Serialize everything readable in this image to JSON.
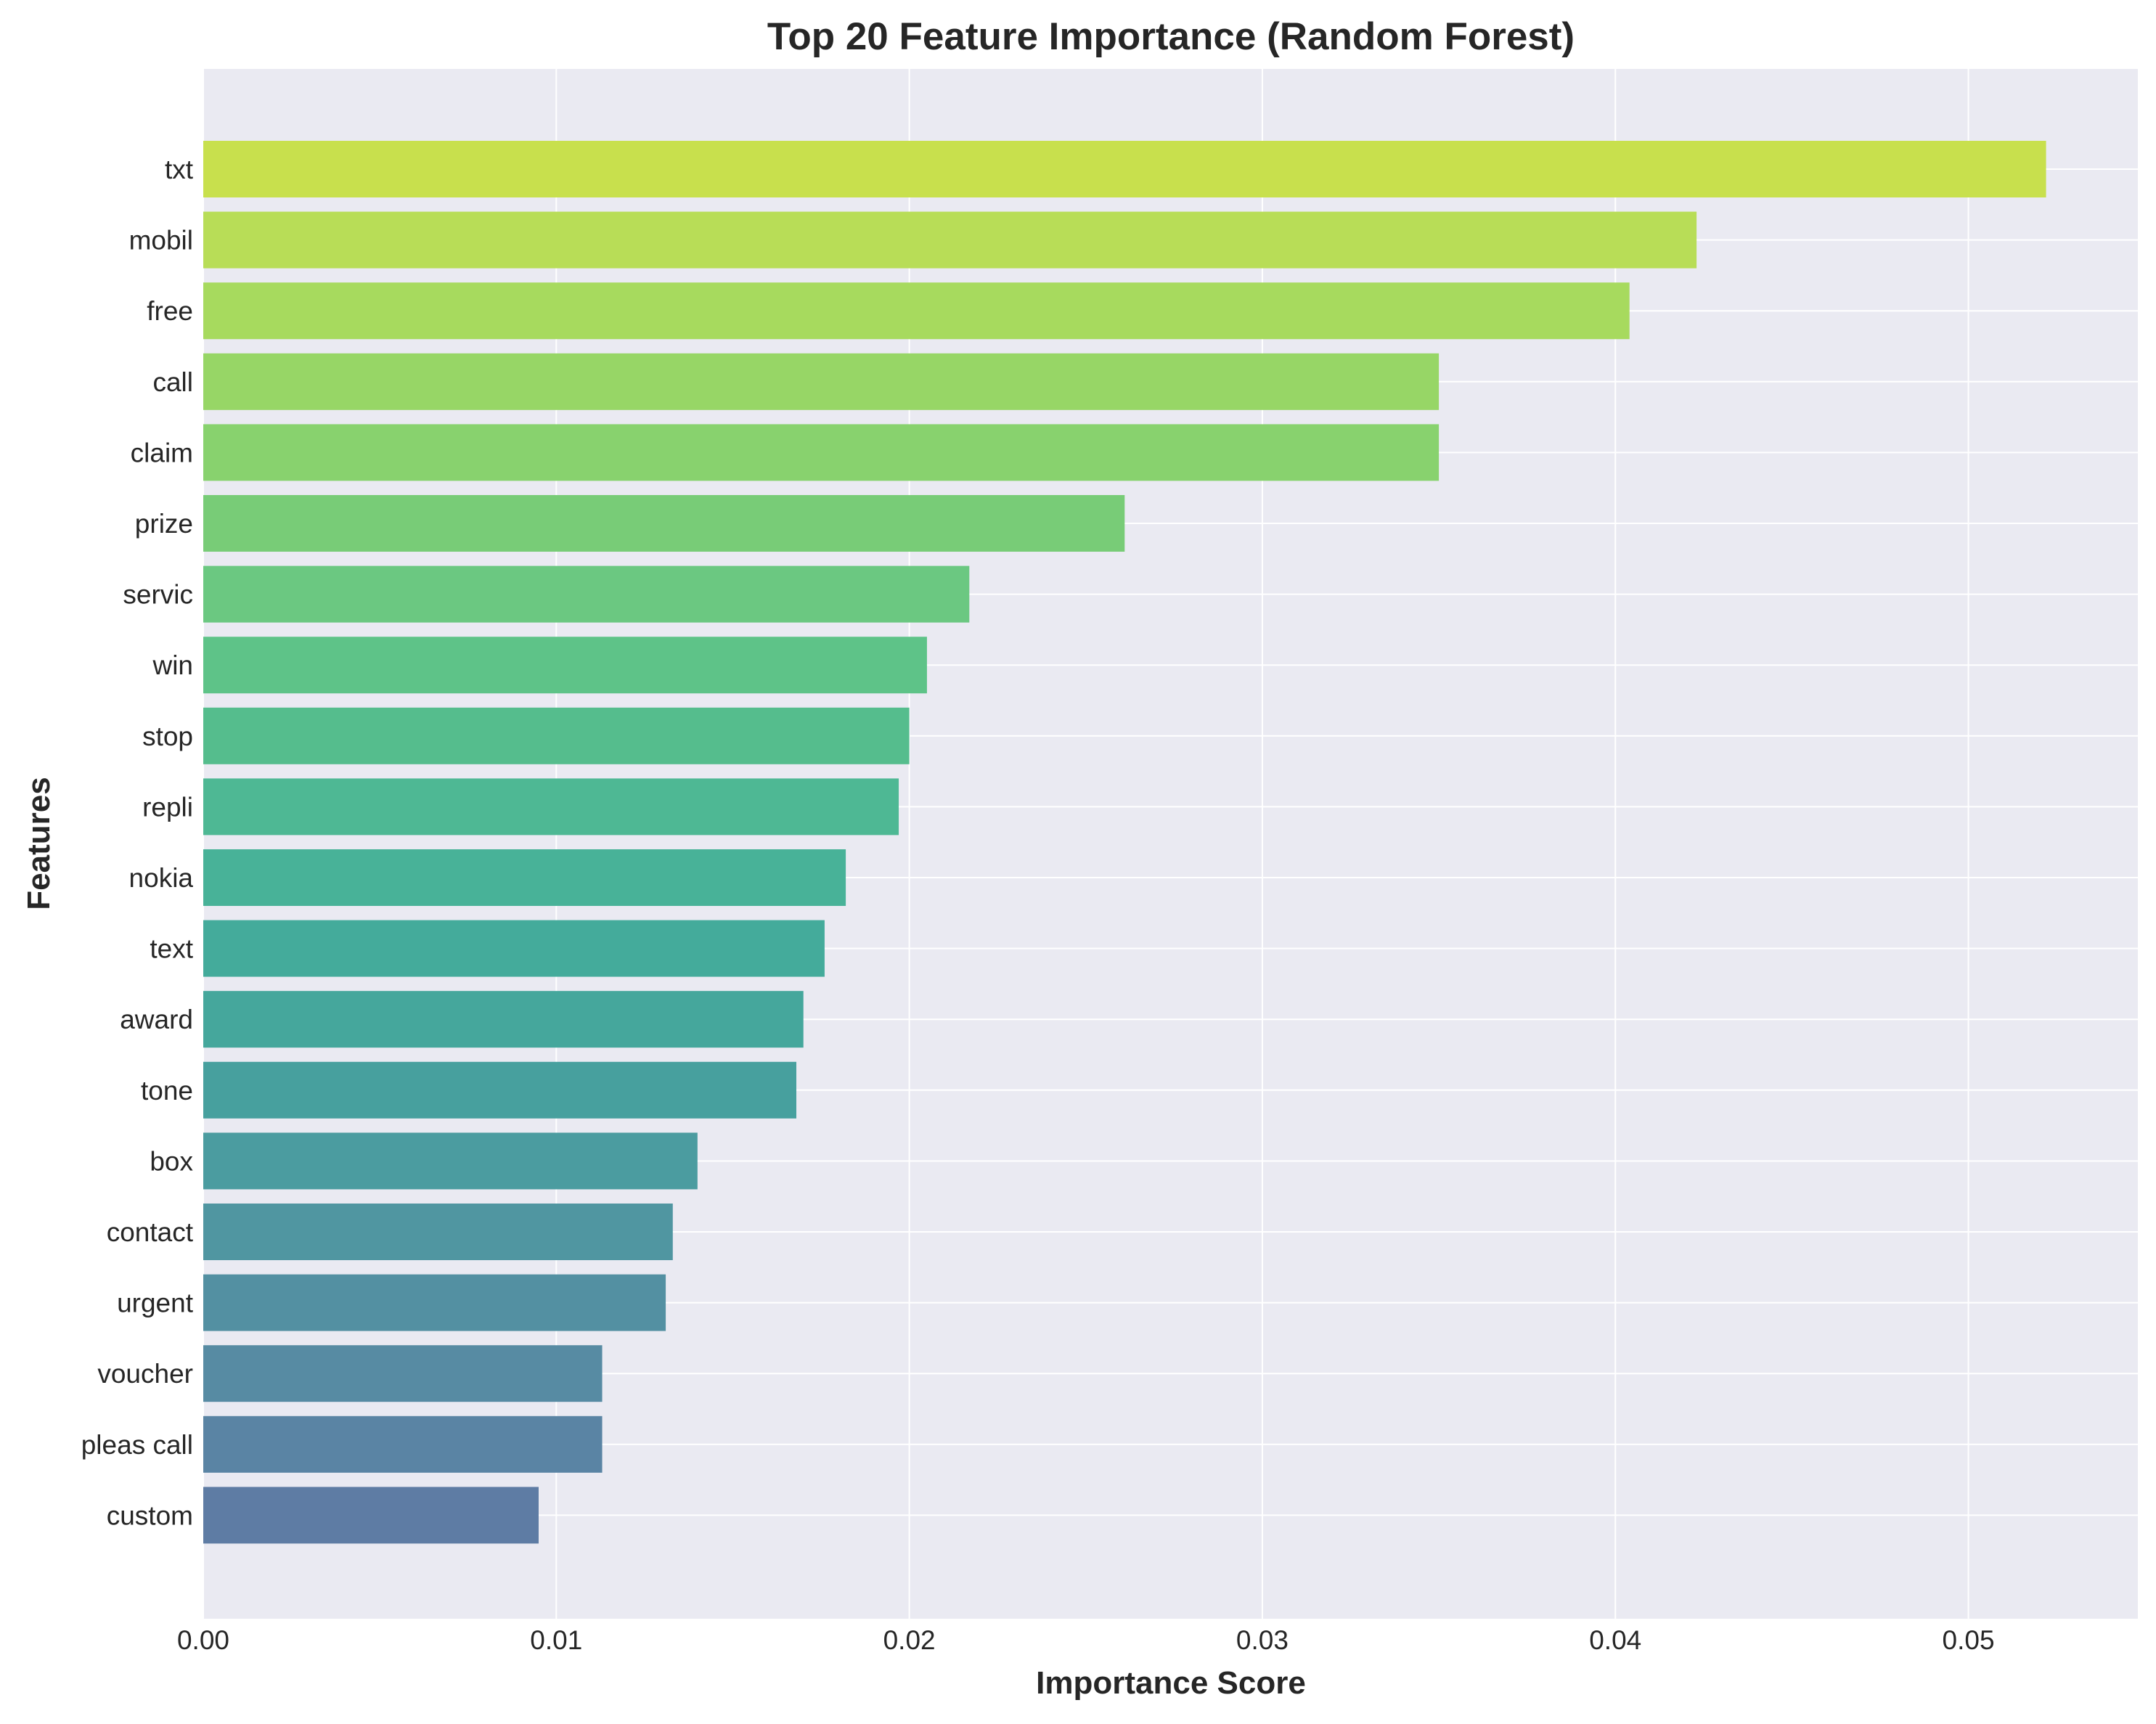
{
  "chart_data": {
    "type": "bar",
    "orientation": "horizontal",
    "title": "Top 20 Feature Importance (Random Forest)",
    "xlabel": "Importance Score",
    "ylabel": "Features",
    "xlim": [
      0,
      0.0548
    ],
    "xticks": [
      0.0,
      0.01,
      0.02,
      0.03,
      0.04,
      0.05
    ],
    "xtick_labels": [
      "0.00",
      "0.01",
      "0.02",
      "0.03",
      "0.04",
      "0.05"
    ],
    "grid": true,
    "categories": [
      "txt",
      "mobil",
      "free",
      "call",
      "claim",
      "prize",
      "servic",
      "win",
      "stop",
      "repli",
      "nokia",
      "text",
      "award",
      "tone",
      "box",
      "contact",
      "urgent",
      "voucher",
      "pleas call",
      "custom"
    ],
    "values": [
      0.0522,
      0.0423,
      0.0404,
      0.035,
      0.035,
      0.0261,
      0.0217,
      0.0205,
      0.02,
      0.0197,
      0.0182,
      0.0176,
      0.017,
      0.0168,
      0.014,
      0.0133,
      0.0131,
      0.0113,
      0.0113,
      0.0095
    ],
    "colors": [
      "#c8e04d",
      "#b8dd57",
      "#a7da5e",
      "#97d666",
      "#88d26e",
      "#78cc77",
      "#6bc881",
      "#5ec388",
      "#55bd8d",
      "#4eb894",
      "#48b298",
      "#44ab9b",
      "#45a79c",
      "#47a09e",
      "#4b9ca0",
      "#5096a1",
      "#5390a2",
      "#578ba3",
      "#5a84a4",
      "#5e7ca4"
    ]
  }
}
